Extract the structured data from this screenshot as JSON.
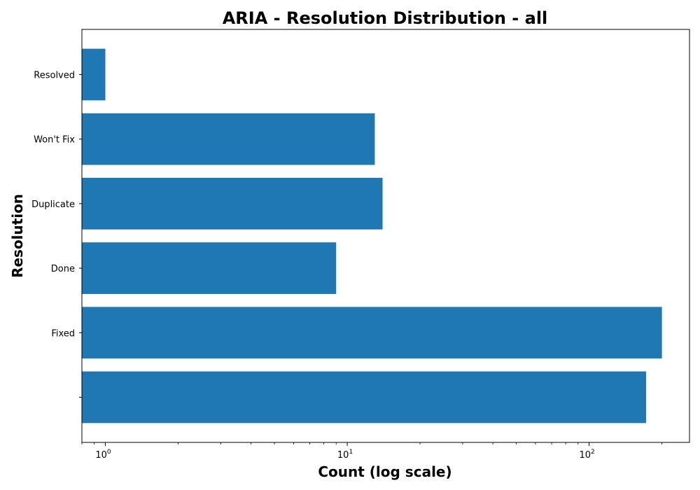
{
  "chart_data": {
    "type": "bar",
    "orientation": "horizontal",
    "title": "ARIA - Resolution Distribution - all",
    "xlabel": "Count (log scale)",
    "ylabel": "Resolution",
    "x_scale": "log",
    "xlim": [
      0.8,
      260
    ],
    "x_ticks": [
      {
        "value": 1,
        "base": "10",
        "exp": "0"
      },
      {
        "value": 10,
        "base": "10",
        "exp": "1"
      },
      {
        "value": 100,
        "base": "10",
        "exp": "2"
      }
    ],
    "categories": [
      "",
      "Fixed",
      "Done",
      "Duplicate",
      "Won't Fix",
      "Resolved"
    ],
    "values": [
      172,
      200,
      9,
      14,
      13,
      1
    ],
    "grid": false,
    "colors": {
      "bar": "#1f77b4",
      "axis": "#000000",
      "background": "#ffffff"
    }
  }
}
